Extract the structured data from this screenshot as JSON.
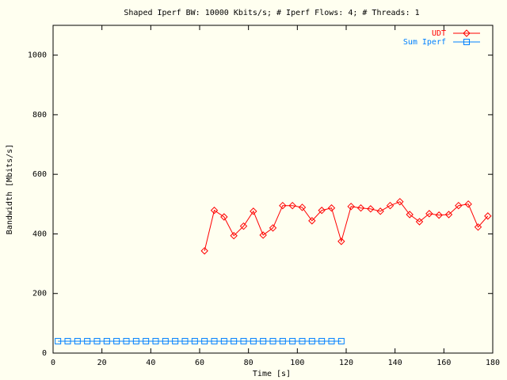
{
  "chart_data": {
    "type": "line",
    "title": "Shaped Iperf BW: 10000 Kbits/s; # Iperf Flows: 4; # Threads: 1",
    "x_label": "Time [s]",
    "y_label": "Bandwidth [Mbits/s]",
    "xlim": [
      0,
      180
    ],
    "xticks": [
      0,
      20,
      40,
      60,
      80,
      100,
      120,
      140,
      160,
      180
    ],
    "ylim": [
      0,
      1100
    ],
    "yticks": [
      0,
      200,
      400,
      600,
      800,
      1000
    ],
    "grid": false,
    "legend": "top-right",
    "series": [
      {
        "name": "UDT",
        "color": "#ff0000",
        "marker": "diamond",
        "x": [
          62,
          66,
          70,
          74,
          78,
          82,
          86,
          90,
          94,
          98,
          102,
          106,
          110,
          114,
          118,
          122,
          126,
          130,
          134,
          138,
          142,
          146,
          150,
          154,
          158,
          162,
          166,
          170,
          174,
          178
        ],
        "values": [
          343,
          479,
          457,
          394,
          426,
          476,
          396,
          420,
          495,
          495,
          489,
          444,
          479,
          487,
          375,
          492,
          487,
          484,
          476,
          495,
          508,
          465,
          441,
          468,
          463,
          465,
          495,
          500,
          423,
          460
        ]
      },
      {
        "name": "Sum Iperf",
        "color": "#0080ff",
        "marker": "square",
        "x": [
          2,
          6,
          10,
          14,
          18,
          22,
          26,
          30,
          34,
          38,
          42,
          46,
          50,
          54,
          58,
          62,
          66,
          70,
          74,
          78,
          82,
          86,
          90,
          94,
          98,
          102,
          106,
          110,
          114,
          118
        ],
        "values": [
          40,
          40,
          40,
          40,
          40,
          40,
          40,
          40,
          40,
          40,
          40,
          40,
          40,
          40,
          40,
          40,
          40,
          40,
          40,
          40,
          40,
          40,
          40,
          40,
          40,
          40,
          40,
          40,
          40,
          40
        ]
      }
    ]
  }
}
